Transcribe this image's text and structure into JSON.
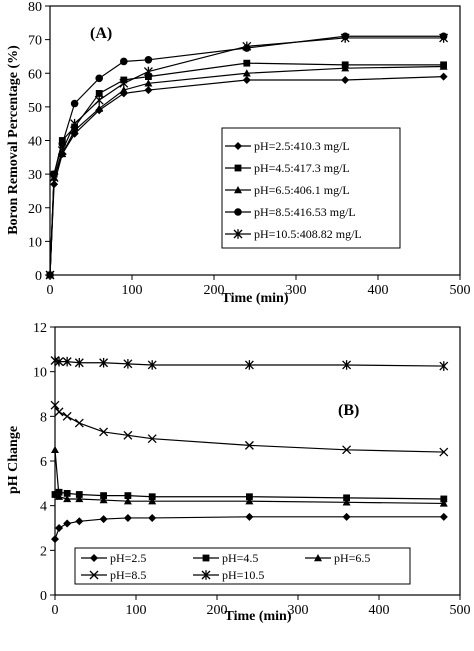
{
  "chart_data": [
    {
      "type": "line",
      "panel_label": "(A)",
      "xlabel": "Time (min)",
      "ylabel": "Boron Removal Percentage (%)",
      "xlim": [
        0,
        500
      ],
      "ylim": [
        0,
        80
      ],
      "xticks": [
        0,
        100,
        200,
        300,
        400,
        500
      ],
      "yticks": [
        0,
        10,
        20,
        30,
        40,
        50,
        60,
        70,
        80
      ],
      "legend_position": "inside-right",
      "series": [
        {
          "name": "pH=2.5:410.3 mg/L",
          "marker": "diamond",
          "x": [
            0,
            5,
            15,
            30,
            60,
            90,
            120,
            240,
            360,
            480
          ],
          "y": [
            0,
            27,
            36,
            42,
            49,
            54,
            55,
            58,
            58,
            59
          ]
        },
        {
          "name": "pH=4.5:417.3 mg/L",
          "marker": "square",
          "x": [
            0,
            5,
            15,
            30,
            60,
            90,
            120,
            240,
            360,
            480
          ],
          "y": [
            0,
            30,
            40,
            44,
            54,
            58,
            59,
            63,
            62.5,
            62.5
          ]
        },
        {
          "name": "pH=6.5:406.1 mg/L",
          "marker": "triangle",
          "x": [
            0,
            5,
            15,
            30,
            60,
            90,
            120,
            240,
            360,
            480
          ],
          "y": [
            0,
            29,
            36,
            43,
            49.5,
            55,
            57,
            60,
            61.5,
            62
          ]
        },
        {
          "name": "pH=8.5:416.53 mg/L",
          "marker": "circle",
          "x": [
            0,
            5,
            15,
            30,
            60,
            90,
            120,
            240,
            360,
            480
          ],
          "y": [
            0,
            30,
            39,
            51,
            58.5,
            63.5,
            64,
            67.5,
            71,
            71
          ]
        },
        {
          "name": "pH=10.5:408.82 mg/L",
          "marker": "star",
          "x": [
            0,
            5,
            15,
            30,
            60,
            90,
            120,
            240,
            360,
            480
          ],
          "y": [
            0,
            29,
            37,
            45,
            52,
            57,
            60.5,
            68,
            70.5,
            70.5
          ]
        }
      ]
    },
    {
      "type": "line",
      "panel_label": "(B)",
      "xlabel": "Time (min)",
      "ylabel": "pH Change",
      "xlim": [
        0,
        500
      ],
      "ylim": [
        0,
        12
      ],
      "xticks": [
        0,
        100,
        200,
        300,
        400,
        500
      ],
      "yticks": [
        0,
        2,
        4,
        6,
        8,
        10,
        12
      ],
      "legend_position": "bottom",
      "series": [
        {
          "name": "pH=2.5",
          "marker": "diamond",
          "x": [
            0,
            5,
            15,
            30,
            60,
            90,
            120,
            240,
            360,
            480
          ],
          "y": [
            2.5,
            3.0,
            3.2,
            3.3,
            3.4,
            3.45,
            3.45,
            3.5,
            3.5,
            3.5
          ]
        },
        {
          "name": "pH=4.5",
          "marker": "square",
          "x": [
            0,
            5,
            15,
            30,
            60,
            90,
            120,
            240,
            360,
            480
          ],
          "y": [
            4.5,
            4.6,
            4.55,
            4.5,
            4.45,
            4.45,
            4.4,
            4.4,
            4.35,
            4.3
          ]
        },
        {
          "name": "pH=6.5",
          "marker": "triangle",
          "x": [
            0,
            5,
            15,
            30,
            60,
            90,
            120,
            240,
            360,
            480
          ],
          "y": [
            6.5,
            4.4,
            4.3,
            4.3,
            4.25,
            4.2,
            4.2,
            4.2,
            4.15,
            4.1
          ]
        },
        {
          "name": "pH=8.5",
          "marker": "x",
          "x": [
            0,
            5,
            15,
            30,
            60,
            90,
            120,
            240,
            360,
            480
          ],
          "y": [
            8.5,
            8.2,
            8.0,
            7.7,
            7.3,
            7.15,
            7.0,
            6.7,
            6.5,
            6.4
          ]
        },
        {
          "name": "pH=10.5",
          "marker": "star",
          "x": [
            0,
            5,
            15,
            30,
            60,
            90,
            120,
            240,
            360,
            480
          ],
          "y": [
            10.5,
            10.45,
            10.45,
            10.4,
            10.4,
            10.35,
            10.3,
            10.3,
            10.3,
            10.25
          ]
        }
      ]
    }
  ]
}
